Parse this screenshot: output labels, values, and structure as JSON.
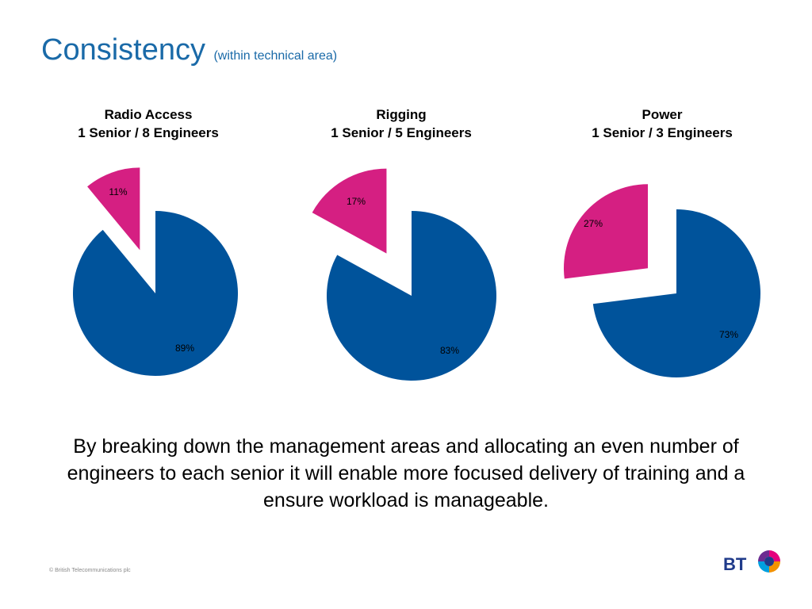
{
  "title": {
    "main": "Consistency",
    "sub": "(within technical area)"
  },
  "colors": {
    "primary": "#00539b",
    "secondary": "#d51f82",
    "title": "#1a6aa8"
  },
  "chart_data": [
    {
      "type": "pie",
      "title": "Radio Access",
      "subtitle": "1 Senior / 8 Engineers",
      "slices": [
        {
          "label": "89%",
          "value": 89
        },
        {
          "label": "11%",
          "value": 11
        }
      ]
    },
    {
      "type": "pie",
      "title": "Rigging",
      "subtitle": "1 Senior / 5 Engineers",
      "slices": [
        {
          "label": "83%",
          "value": 83
        },
        {
          "label": "17%",
          "value": 17
        }
      ]
    },
    {
      "type": "pie",
      "title": "Power",
      "subtitle": "1 Senior / 3 Engineers",
      "slices": [
        {
          "label": "73%",
          "value": 73
        },
        {
          "label": "27%",
          "value": 27
        }
      ]
    }
  ],
  "caption": "By breaking down the management areas and allocating an even number of engineers to each senior it will enable more focused delivery of training and a ensure workload is manageable.",
  "footer": "© British Telecommunications plc",
  "logo": {
    "text": "BT",
    "icon": "bt-piper-globe-icon"
  }
}
